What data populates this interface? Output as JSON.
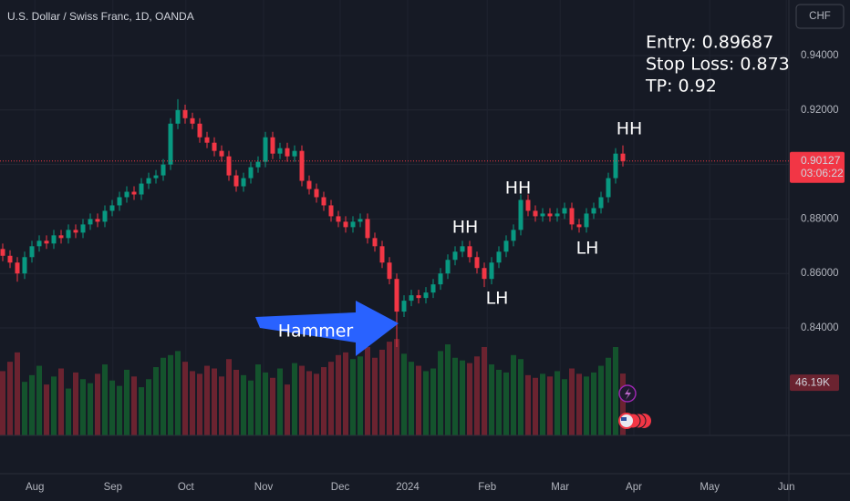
{
  "chart_data": {
    "type": "candlestick",
    "title": "U.S. Dollar / Swiss Franc, 1D, OANDA",
    "currency": "CHF",
    "countdown": "03:06:22",
    "annotations": {
      "trade": [
        "Entry: 0.89687",
        "Stop Loss: 0.873",
        "TP: 0.92"
      ],
      "swings": [
        "HH",
        "LH",
        "HH",
        "LH",
        "HH"
      ],
      "pattern": "Hammer"
    },
    "colors": {
      "up": "#089981",
      "down": "#f23645",
      "volume_up": "#14532d",
      "volume_down": "#6b2330",
      "arrow": "#2962ff"
    },
    "grid": true,
    "xlim": [
      -0.375,
      107.75
    ],
    "xticks": [
      {
        "value": 4.4,
        "label": "Aug"
      },
      {
        "value": 15.1,
        "label": "Sep"
      },
      {
        "value": 25.1,
        "label": "Oct"
      },
      {
        "value": 35.75,
        "label": "Nov"
      },
      {
        "value": 46.25,
        "label": "Dec"
      },
      {
        "value": 55.5,
        "label": "2024"
      },
      {
        "value": 66.4,
        "label": "Feb"
      },
      {
        "value": 76.4,
        "label": "Mar"
      },
      {
        "value": 86.5,
        "label": "Apr"
      },
      {
        "value": 96.9,
        "label": "May"
      },
      {
        "value": 107.4,
        "label": "Jun"
      }
    ],
    "ylim": [
      0.7865,
      0.9604
    ],
    "yticks": [
      {
        "value": 0.84,
        "label": "0.84000"
      },
      {
        "value": 0.86,
        "label": "0.86000"
      },
      {
        "value": 0.88,
        "label": "0.88000"
      },
      {
        "value": 0.9,
        "label": "0.90000"
      },
      {
        "value": 0.92,
        "label": "0.92000"
      },
      {
        "value": 0.94,
        "label": "0.94000"
      }
    ],
    "open": [
      0.869,
      0.8665,
      0.864,
      0.86,
      0.866,
      0.87,
      0.872,
      0.871,
      0.874,
      0.873,
      0.876,
      0.875,
      0.878,
      0.88,
      0.879,
      0.883,
      0.885,
      0.888,
      0.89,
      0.889,
      0.893,
      0.895,
      0.896,
      0.9,
      0.915,
      0.92,
      0.917,
      0.915,
      0.91,
      0.908,
      0.905,
      0.903,
      0.896,
      0.892,
      0.895,
      0.899,
      0.901,
      0.91,
      0.904,
      0.906,
      0.903,
      0.905,
      0.894,
      0.891,
      0.888,
      0.885,
      0.881,
      0.879,
      0.877,
      0.879,
      0.88,
      0.873,
      0.87,
      0.864,
      0.858,
      0.846,
      0.85,
      0.852,
      0.851,
      0.853,
      0.856,
      0.86,
      0.865,
      0.868,
      0.87,
      0.866,
      0.862,
      0.858,
      0.864,
      0.868,
      0.872,
      0.876,
      0.887,
      0.883,
      0.881,
      0.882,
      0.881,
      0.882,
      0.884,
      0.878,
      0.877,
      0.882,
      0.884,
      0.888,
      0.895,
      0.904
    ],
    "high": [
      0.871,
      0.8685,
      0.866,
      0.868,
      0.872,
      0.874,
      0.874,
      0.876,
      0.876,
      0.878,
      0.878,
      0.88,
      0.882,
      0.882,
      0.885,
      0.887,
      0.89,
      0.892,
      0.892,
      0.895,
      0.897,
      0.898,
      0.902,
      0.917,
      0.924,
      0.922,
      0.919,
      0.917,
      0.912,
      0.91,
      0.907,
      0.905,
      0.898,
      0.897,
      0.901,
      0.903,
      0.912,
      0.912,
      0.908,
      0.908,
      0.907,
      0.907,
      0.896,
      0.893,
      0.89,
      0.887,
      0.883,
      0.881,
      0.881,
      0.882,
      0.882,
      0.875,
      0.872,
      0.866,
      0.86,
      0.852,
      0.854,
      0.854,
      0.855,
      0.858,
      0.862,
      0.867,
      0.87,
      0.872,
      0.872,
      0.868,
      0.864,
      0.866,
      0.87,
      0.874,
      0.878,
      0.889,
      0.889,
      0.885,
      0.884,
      0.884,
      0.884,
      0.886,
      0.886,
      0.88,
      0.884,
      0.886,
      0.89,
      0.897,
      0.906,
      0.907
    ],
    "low": [
      0.8645,
      0.862,
      0.857,
      0.858,
      0.864,
      0.868,
      0.869,
      0.869,
      0.871,
      0.871,
      0.873,
      0.873,
      0.876,
      0.877,
      0.877,
      0.881,
      0.883,
      0.886,
      0.887,
      0.887,
      0.891,
      0.893,
      0.894,
      0.898,
      0.913,
      0.915,
      0.913,
      0.908,
      0.906,
      0.903,
      0.901,
      0.894,
      0.89,
      0.89,
      0.893,
      0.897,
      0.899,
      0.902,
      0.902,
      0.901,
      0.901,
      0.892,
      0.889,
      0.886,
      0.883,
      0.879,
      0.877,
      0.875,
      0.875,
      0.877,
      0.871,
      0.868,
      0.862,
      0.856,
      0.833,
      0.844,
      0.848,
      0.849,
      0.849,
      0.851,
      0.854,
      0.858,
      0.863,
      0.866,
      0.864,
      0.86,
      0.855,
      0.856,
      0.862,
      0.866,
      0.87,
      0.874,
      0.881,
      0.879,
      0.879,
      0.879,
      0.879,
      0.88,
      0.876,
      0.875,
      0.875,
      0.88,
      0.882,
      0.886,
      0.893,
      0.8993
    ],
    "close": [
      0.8665,
      0.864,
      0.86,
      0.866,
      0.87,
      0.872,
      0.871,
      0.874,
      0.873,
      0.876,
      0.875,
      0.878,
      0.88,
      0.879,
      0.883,
      0.885,
      0.888,
      0.89,
      0.889,
      0.893,
      0.895,
      0.896,
      0.9,
      0.915,
      0.92,
      0.917,
      0.915,
      0.91,
      0.908,
      0.905,
      0.903,
      0.896,
      0.892,
      0.895,
      0.899,
      0.901,
      0.91,
      0.904,
      0.906,
      0.903,
      0.905,
      0.894,
      0.891,
      0.888,
      0.885,
      0.881,
      0.879,
      0.877,
      0.879,
      0.88,
      0.873,
      0.87,
      0.864,
      0.858,
      0.846,
      0.85,
      0.852,
      0.851,
      0.853,
      0.856,
      0.86,
      0.865,
      0.868,
      0.87,
      0.866,
      0.862,
      0.858,
      0.864,
      0.868,
      0.872,
      0.876,
      0.887,
      0.883,
      0.881,
      0.882,
      0.881,
      0.882,
      0.884,
      0.878,
      0.877,
      0.882,
      0.884,
      0.888,
      0.895,
      0.904,
      0.90127
    ],
    "volume": [
      48,
      55,
      62,
      40,
      45,
      52,
      38,
      44,
      50,
      35,
      47,
      42,
      39,
      46,
      53,
      41,
      37,
      49,
      44,
      36,
      42,
      51,
      58,
      60,
      63,
      55,
      48,
      46,
      52,
      50,
      44,
      57,
      49,
      45,
      41,
      53,
      47,
      43,
      50,
      38,
      54,
      52,
      48,
      46,
      51,
      55,
      60,
      62,
      57,
      59,
      66,
      58,
      64,
      70,
      72,
      61,
      55,
      52,
      48,
      50,
      63,
      68,
      58,
      56,
      54,
      59,
      66,
      53,
      49,
      47,
      60,
      57,
      45,
      43,
      46,
      44,
      48,
      42,
      50,
      46,
      44,
      47,
      52,
      58,
      66,
      46.19
    ],
    "volume_value_labels": {
      "85": "46.19K"
    }
  }
}
